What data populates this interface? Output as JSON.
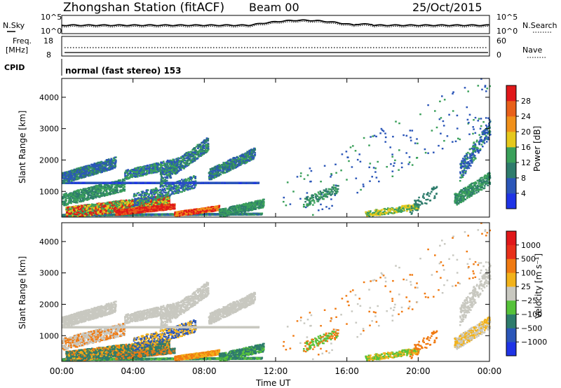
{
  "header": {
    "station": "Zhongshan Station (fitACF)",
    "beam": "Beam 00",
    "date": "25/Oct/2015"
  },
  "noise_panel": {
    "left_label": "N.Sky",
    "right_label": "N.Search",
    "left_ticks": [
      "10^5",
      "10^0"
    ],
    "right_ticks": [
      "10^5",
      "10^0"
    ]
  },
  "freq_panel": {
    "left_label": "Freq.",
    "left_unit": "[MHz]",
    "left_ticks": [
      "18",
      "8"
    ],
    "right_label": "Nave",
    "right_ticks": [
      "60",
      "0"
    ]
  },
  "cpid": {
    "label": "CPID",
    "text": "normal (fast stereo) 153"
  },
  "colors": {
    "blue": "#1e3fd6",
    "dark_blue": "#2a4fb0",
    "teal": "#2f7f6e",
    "green": "#3d9c5a",
    "yellow": "#e8c21a",
    "orange": "#f08a12",
    "red": "#e11d12",
    "grey": "#c8c8c0"
  },
  "chart_data": [
    {
      "type": "heatmap",
      "title": "",
      "ylabel": "Slant Range [km]",
      "xlabel": "",
      "x_ticks": [
        "00:00",
        "04:00",
        "08:00",
        "12:00",
        "16:00",
        "20:00",
        "00:00"
      ],
      "x_range_hours": [
        0,
        24
      ],
      "y_ticks": [
        1000,
        2000,
        3000,
        4000
      ],
      "y_range_km": [
        180,
        4600
      ],
      "colorbar": {
        "label": "Power [dB]",
        "ticks": [
          "4",
          "8",
          "12",
          "16",
          "20",
          "24",
          "28"
        ],
        "range": [
          0,
          30
        ],
        "colors": [
          "#1f34e6",
          "#2b56b8",
          "#2e7c6c",
          "#3aa05a",
          "#e6c81c",
          "#f0901a",
          "#e8601a",
          "#e0181a"
        ]
      },
      "regions": [
        {
          "t0": 0.3,
          "t1": 3.0,
          "r0": 1300,
          "r1": 1850,
          "level": 1
        },
        {
          "t0": 0.0,
          "t1": 1.0,
          "r0": 1950,
          "r1": 1400,
          "level": 2
        },
        {
          "t0": 1.3,
          "t1": 2.4,
          "r0": 1000,
          "r1": 300,
          "level": 4
        },
        {
          "t0": 3.0,
          "t1": 5.6,
          "r0": 480,
          "r1": 250,
          "level": 7
        },
        {
          "t0": 5.0,
          "t1": 9.0,
          "r0": 1200,
          "r1": 2600,
          "level": 3
        },
        {
          "t0": 8.2,
          "t1": 10.8,
          "r0": 1200,
          "r1": 2300,
          "level": 2
        },
        {
          "t0": 6.4,
          "t1": 8.8,
          "r0": 450,
          "r1": 250,
          "level": 7
        },
        {
          "t0": 9.0,
          "t1": 11.3,
          "r0": 600,
          "r1": 250,
          "level": 3
        },
        {
          "t0": 13.5,
          "t1": 15.0,
          "r0": 900,
          "r1": 1100,
          "level": 3
        },
        {
          "t0": 17.0,
          "t1": 19.5,
          "r0": 400,
          "r1": 200,
          "level": 3
        },
        {
          "t0": 22.3,
          "t1": 24.0,
          "r0": 600,
          "r1": 3000,
          "level": 2
        }
      ]
    },
    {
      "type": "heatmap",
      "title": "",
      "ylabel": "Slant Range [km]",
      "xlabel": "Time UT",
      "x_ticks": [
        "00:00",
        "04:00",
        "08:00",
        "12:00",
        "16:00",
        "20:00",
        "00:00"
      ],
      "x_range_hours": [
        0,
        24
      ],
      "y_ticks": [
        1000,
        2000,
        3000,
        4000
      ],
      "y_range_km": [
        180,
        4600
      ],
      "colorbar": {
        "label": "Velocity [m s⁻¹]",
        "ticks": [
          "1000",
          "500",
          "100",
          "25",
          "−25",
          "−100",
          "−500",
          "−1000"
        ],
        "range": [
          -1200,
          1200
        ],
        "colors": [
          "#1f34e6",
          "#2b56b8",
          "#2e7c6c",
          "#56c23a",
          "#c8c8c0",
          "#f2b21a",
          "#f07a12",
          "#e8301a",
          "#e0181a"
        ]
      }
    }
  ]
}
